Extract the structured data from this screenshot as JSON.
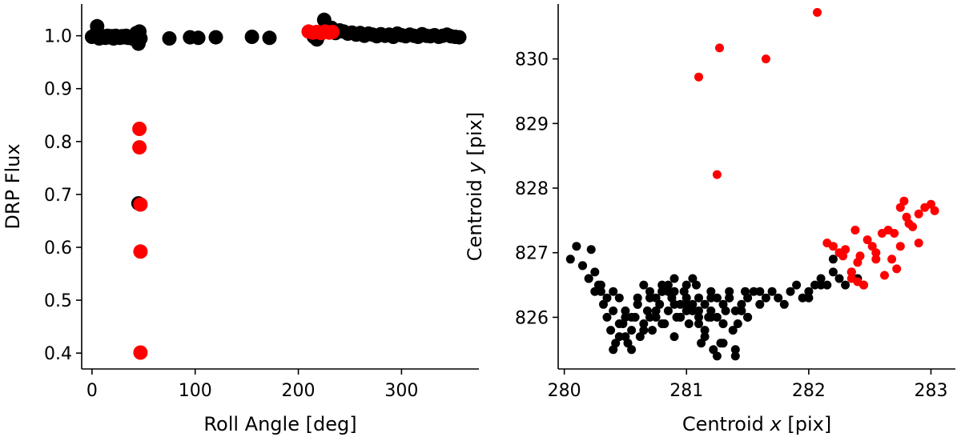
{
  "chart_data": [
    {
      "type": "scatter",
      "xlabel": "Roll Angle [deg]",
      "ylabel": "DRP Flux",
      "xlim": [
        -10,
        375
      ],
      "ylim": [
        0.37,
        1.06
      ],
      "xticks": [
        0,
        100,
        200,
        300
      ],
      "xtick_labels": [
        "0",
        "100",
        "200",
        "300"
      ],
      "yticks": [
        0.4,
        0.5,
        0.6,
        0.7,
        0.8,
        0.9,
        1.0
      ],
      "ytick_labels": [
        "0.4",
        "0.5",
        "0.6",
        "0.7",
        "0.8",
        "0.9",
        "1.0"
      ],
      "grid": false,
      "legend": "none",
      "series": [
        {
          "color": "#000000",
          "marker_size": "large",
          "x": [
            0,
            3,
            5,
            7,
            9,
            11,
            13,
            15,
            17,
            19,
            21,
            23,
            25,
            27,
            29,
            31,
            33,
            35,
            37,
            39,
            41,
            43,
            45,
            46,
            47,
            45,
            75,
            95,
            103,
            120,
            155,
            172,
            215,
            218,
            221,
            225,
            228,
            232,
            236,
            240,
            244,
            248,
            252,
            256,
            260,
            264,
            268,
            272,
            276,
            280,
            284,
            288,
            292,
            296,
            300,
            304,
            308,
            312,
            316,
            320,
            324,
            328,
            332,
            336,
            340,
            344,
            348,
            352,
            356
          ],
          "y": [
            0.998,
            1.002,
            1.018,
            0.995,
            1.0,
            0.998,
            0.996,
            1.0,
            0.997,
            0.999,
            0.995,
            1.0,
            0.998,
            0.996,
            0.999,
            0.997,
            1.0,
            0.996,
            0.998,
            0.995,
            0.999,
            1.005,
            0.985,
            1.008,
            0.995,
            0.683,
            0.995,
            0.997,
            0.996,
            0.997,
            0.998,
            0.996,
            0.998,
            0.993,
            1.003,
            1.03,
            1.012,
            1.015,
            1.005,
            1.01,
            1.008,
            1.004,
            1.006,
            1.002,
            1.005,
            1.0,
            1.004,
            1.002,
            0.999,
            1.003,
            1.0,
            1.002,
            0.998,
            1.004,
            1.001,
            0.999,
            1.002,
            1.0,
            0.998,
            1.003,
            1.0,
            0.999,
            1.001,
            0.998,
            1.0,
            1.002,
            0.999,
            0.998,
            0.997
          ]
        },
        {
          "color": "#ff0000",
          "marker_size": "large",
          "x": [
            46,
            46,
            47,
            47,
            47,
            210,
            214,
            218,
            222,
            226,
            230,
            233
          ],
          "y": [
            0.824,
            0.789,
            0.681,
            0.592,
            0.401,
            1.008,
            1.006,
            1.007,
            1.005,
            1.008,
            1.006,
            1.007
          ]
        }
      ]
    },
    {
      "type": "scatter",
      "xlabel": "Centroid x [pix]",
      "xlabel_parts": [
        "Centroid ",
        "x",
        " [pix]"
      ],
      "ylabel": "Centroid y [pix]",
      "ylabel_parts": [
        "Centroid ",
        "y",
        " [pix]"
      ],
      "xlim": [
        279.95,
        283.2
      ],
      "ylim": [
        825.2,
        830.85
      ],
      "xticks": [
        280,
        281,
        282,
        283
      ],
      "xtick_labels": [
        "280",
        "281",
        "282",
        "283"
      ],
      "yticks": [
        826,
        827,
        828,
        829,
        830
      ],
      "ytick_labels": [
        "826",
        "827",
        "828",
        "829",
        "830"
      ],
      "grid": false,
      "legend": "none",
      "series": [
        {
          "color": "#000000",
          "marker_size": "small",
          "x": [
            280.05,
            280.1,
            280.15,
            280.2,
            280.22,
            280.25,
            280.28,
            280.3,
            280.32,
            280.35,
            280.38,
            280.4,
            280.42,
            280.45,
            280.48,
            280.5,
            280.52,
            280.55,
            280.58,
            280.6,
            280.62,
            280.65,
            280.68,
            280.7,
            280.72,
            280.75,
            280.78,
            280.8,
            280.82,
            280.85,
            280.88,
            280.9,
            280.92,
            280.95,
            280.98,
            281.0,
            281.02,
            281.05,
            281.08,
            281.1,
            281.12,
            281.15,
            281.18,
            281.2,
            281.22,
            281.25,
            281.28,
            281.3,
            281.32,
            281.35,
            281.38,
            281.4,
            281.42,
            281.45,
            281.48,
            281.5,
            281.55,
            281.6,
            281.65,
            281.7,
            281.75,
            281.8,
            281.85,
            281.9,
            281.95,
            282.0,
            282.05,
            282.1,
            282.15,
            282.2,
            282.25,
            282.3,
            282.35,
            282.4,
            282.45,
            280.35,
            280.4,
            280.45,
            280.5,
            280.55,
            280.6,
            280.65,
            280.7,
            280.75,
            280.8,
            280.85,
            280.9,
            280.95,
            281.0,
            281.05,
            281.1,
            281.15,
            281.2,
            281.25,
            281.3,
            281.35,
            281.4,
            280.6,
            280.7,
            280.8,
            280.9,
            281.0,
            281.1,
            281.2,
            281.3,
            280.65,
            280.75,
            280.85,
            280.95,
            281.05,
            281.15,
            281.25,
            280.4,
            280.5,
            280.3,
            281.45,
            281.5,
            281.35,
            280.55,
            281.6,
            282.0,
            282.1,
            282.2,
            280.15,
            280.25,
            280.2,
            280.45,
            281.3,
            281.4,
            281.5,
            280.9,
            280.8,
            281.0,
            281.1,
            281.2
          ],
          "y": [
            826.9,
            827.1,
            826.8,
            826.6,
            827.05,
            826.7,
            826.5,
            826.4,
            826.2,
            826.0,
            825.8,
            825.5,
            825.6,
            825.7,
            825.9,
            826.1,
            825.6,
            825.8,
            826.0,
            826.3,
            825.7,
            825.9,
            826.1,
            826.4,
            825.8,
            826.0,
            826.2,
            826.5,
            825.9,
            826.1,
            826.3,
            826.6,
            826.0,
            826.2,
            826.4,
            826.1,
            825.9,
            826.2,
            826.5,
            826.0,
            825.6,
            825.8,
            826.0,
            826.3,
            825.5,
            825.4,
            825.6,
            825.9,
            826.1,
            826.3,
            825.8,
            825.5,
            825.9,
            826.2,
            826.4,
            826.3,
            826.4,
            826.2,
            826.3,
            826.4,
            826.3,
            826.2,
            826.4,
            826.5,
            826.3,
            826.4,
            826.5,
            826.6,
            826.5,
            826.7,
            826.6,
            826.5,
            826.7,
            826.6,
            826.5,
            826.3,
            826.1,
            825.9,
            825.7,
            826.0,
            826.2,
            825.8,
            826.3,
            826.1,
            825.9,
            826.4,
            826.2,
            826.0,
            826.3,
            826.1,
            825.9,
            826.2,
            826.4,
            826.0,
            826.2,
            826.4,
            825.4,
            826.2,
            826.0,
            826.4,
            825.7,
            826.5,
            826.3,
            826.1,
            825.9,
            826.5,
            826.3,
            826.5,
            826.0,
            826.6,
            825.7,
            826.3,
            826.4,
            826.0,
            826.5,
            826.1,
            826.0,
            826.3,
            825.5,
            826.4,
            826.3,
            826.5,
            826.9,
            826.8,
            826.4,
            826.6,
            826.3,
            825.6,
            826.1,
            826.0,
            826.4,
            826.4,
            826.2,
            826.1,
            826.0
          ],
          "note_series": false
        },
        {
          "color": "#ff0000",
          "marker_size": "small",
          "x": [
            281.1,
            281.27,
            281.65,
            282.07,
            281.25,
            282.15,
            282.2,
            282.25,
            282.28,
            282.3,
            282.35,
            282.38,
            282.4,
            282.42,
            282.45,
            282.48,
            282.52,
            282.55,
            282.6,
            282.62,
            282.65,
            282.68,
            282.7,
            282.72,
            282.75,
            282.78,
            282.8,
            282.85,
            282.9,
            282.95,
            283.0,
            283.03,
            282.35,
            282.4,
            282.55,
            282.75,
            282.82,
            282.9
          ],
          "y": [
            829.72,
            830.17,
            830.0,
            830.72,
            828.21,
            827.15,
            827.1,
            827.0,
            826.95,
            827.05,
            826.7,
            827.35,
            826.55,
            826.95,
            826.5,
            827.2,
            827.1,
            826.9,
            827.3,
            826.65,
            827.35,
            826.9,
            827.3,
            826.75,
            827.7,
            827.8,
            827.55,
            827.4,
            827.6,
            827.7,
            827.75,
            827.65,
            826.6,
            826.85,
            827.0,
            827.1,
            827.45,
            827.15
          ]
        }
      ]
    }
  ]
}
